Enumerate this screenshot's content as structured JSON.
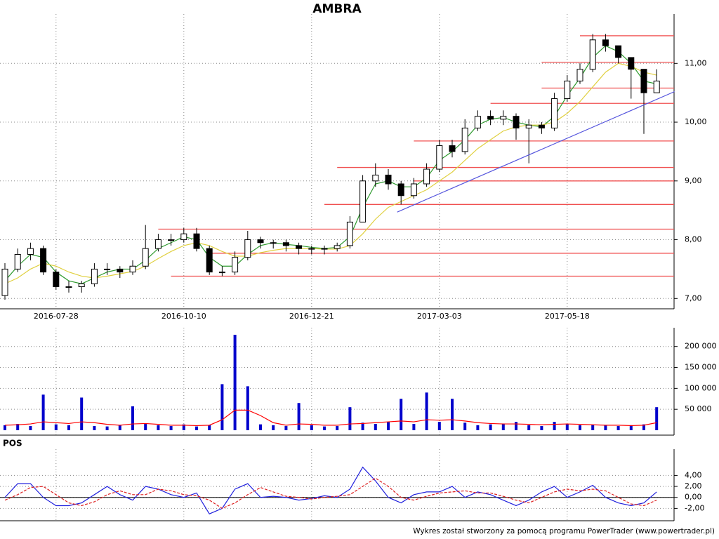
{
  "footer": "Wykres został stworzony za pomocą programu PowerTrader (www.powertrader.pl)",
  "chart_data": [
    {
      "type": "candlestick",
      "title": "AMBRA",
      "categories": [
        null,
        null,
        null,
        null,
        "2016-07-28",
        null,
        null,
        null,
        null,
        null,
        null,
        null,
        null,
        null,
        "2016-10-10",
        null,
        null,
        null,
        null,
        null,
        null,
        null,
        null,
        null,
        "2016-12-21",
        null,
        null,
        null,
        null,
        null,
        null,
        null,
        null,
        null,
        "2017-03-03",
        null,
        null,
        null,
        null,
        null,
        null,
        null,
        null,
        null,
        "2017-05-18",
        null,
        null,
        null,
        null,
        null,
        null,
        null
      ],
      "open": [
        7.05,
        7.5,
        7.75,
        7.85,
        7.45,
        7.2,
        7.2,
        7.25,
        7.5,
        7.5,
        7.45,
        7.55,
        7.85,
        8.0,
        8.0,
        8.1,
        7.85,
        7.45,
        7.45,
        7.7,
        8.0,
        7.95,
        7.95,
        7.9,
        7.85,
        7.85,
        7.85,
        7.9,
        8.3,
        9.0,
        9.1,
        8.95,
        8.75,
        8.95,
        9.2,
        9.6,
        9.5,
        9.9,
        10.1,
        10.05,
        10.1,
        9.9,
        9.95,
        9.9,
        10.4,
        10.7,
        10.9,
        11.4,
        11.3,
        11.1,
        10.9,
        10.5
      ],
      "high": [
        7.6,
        7.85,
        7.95,
        7.9,
        7.5,
        7.3,
        7.3,
        7.6,
        7.6,
        7.55,
        7.65,
        8.25,
        8.1,
        8.1,
        8.2,
        8.2,
        7.9,
        7.55,
        7.8,
        8.15,
        8.05,
        8.0,
        8.0,
        7.95,
        7.9,
        7.9,
        7.95,
        8.4,
        9.1,
        9.3,
        9.2,
        9.0,
        9.05,
        9.3,
        9.7,
        9.7,
        10.05,
        10.2,
        10.2,
        10.2,
        10.15,
        10.05,
        10.0,
        10.5,
        10.8,
        11.0,
        11.5,
        11.5,
        11.3,
        11.1,
        10.9,
        10.9
      ],
      "low": [
        6.98,
        7.45,
        7.65,
        7.4,
        7.15,
        7.1,
        7.1,
        7.2,
        7.4,
        7.35,
        7.4,
        7.5,
        7.8,
        7.9,
        7.95,
        7.8,
        7.4,
        7.38,
        7.4,
        7.65,
        7.85,
        7.85,
        7.8,
        7.75,
        7.75,
        7.75,
        7.8,
        7.85,
        8.3,
        8.9,
        8.85,
        8.6,
        8.7,
        8.9,
        9.15,
        9.4,
        9.45,
        9.85,
        9.95,
        9.95,
        9.7,
        9.3,
        9.8,
        9.85,
        10.35,
        10.65,
        10.85,
        11.2,
        11.0,
        10.4,
        9.8,
        10.5
      ],
      "close": [
        7.5,
        7.75,
        7.85,
        7.45,
        7.2,
        7.2,
        7.25,
        7.5,
        7.5,
        7.45,
        7.55,
        7.85,
        8.0,
        8.0,
        8.1,
        7.85,
        7.45,
        7.45,
        7.7,
        8.0,
        7.95,
        7.95,
        7.9,
        7.85,
        7.85,
        7.85,
        7.9,
        8.3,
        9.0,
        9.1,
        8.95,
        8.75,
        8.95,
        9.2,
        9.6,
        9.5,
        9.9,
        10.1,
        10.05,
        10.1,
        9.9,
        9.95,
        9.9,
        10.4,
        10.7,
        10.9,
        11.4,
        11.3,
        11.1,
        10.9,
        10.5,
        10.7
      ],
      "up_color": "#ffffff",
      "down_color": "#000000",
      "averages": [
        {
          "color": "#2e9a2e",
          "values": [
            7.3,
            7.55,
            7.75,
            7.7,
            7.45,
            7.3,
            7.25,
            7.35,
            7.45,
            7.5,
            7.5,
            7.65,
            7.85,
            7.95,
            8.05,
            8.0,
            7.7,
            7.55,
            7.55,
            7.75,
            7.9,
            7.95,
            7.92,
            7.9,
            7.87,
            7.85,
            7.87,
            8.05,
            8.55,
            8.95,
            9.0,
            8.9,
            8.9,
            9.05,
            9.35,
            9.5,
            9.7,
            9.95,
            10.05,
            10.08,
            10.0,
            9.95,
            9.92,
            10.1,
            10.45,
            10.75,
            11.1,
            11.3,
            11.2,
            11.0,
            10.7,
            10.65
          ]
        },
        {
          "color": "#e0d040",
          "values": [
            7.25,
            7.35,
            7.5,
            7.6,
            7.55,
            7.45,
            7.38,
            7.35,
            7.38,
            7.42,
            7.46,
            7.55,
            7.68,
            7.8,
            7.9,
            7.95,
            7.9,
            7.8,
            7.72,
            7.72,
            7.78,
            7.82,
            7.85,
            7.85,
            7.85,
            7.84,
            7.84,
            7.9,
            8.1,
            8.35,
            8.55,
            8.65,
            8.75,
            8.85,
            9.0,
            9.15,
            9.35,
            9.55,
            9.7,
            9.85,
            9.92,
            9.95,
            9.95,
            10.0,
            10.15,
            10.35,
            10.6,
            10.85,
            11.0,
            10.95,
            10.85,
            10.8
          ]
        }
      ],
      "levels": [
        {
          "value": 7.38,
          "start": 13
        },
        {
          "value": 7.77,
          "start": 16
        },
        {
          "value": 8.18,
          "start": 12
        },
        {
          "value": 8.6,
          "start": 25
        },
        {
          "value": 9.0,
          "start": 32
        },
        {
          "value": 9.23,
          "start": 26
        },
        {
          "value": 9.68,
          "start": 32
        },
        {
          "value": 10.32,
          "start": 38
        },
        {
          "value": 10.58,
          "start": 42
        },
        {
          "value": 11.02,
          "start": 42
        },
        {
          "value": 11.47,
          "start": 45
        }
      ],
      "level_color": "#f05050",
      "trendline": {
        "x": [
          30.7,
          52.4
        ],
        "y": [
          8.47,
          10.52
        ],
        "color": "#5555dd"
      },
      "ylim": [
        6.92,
        11.72
      ],
      "yticks": [
        {
          "value": 7,
          "label": "7,00"
        },
        {
          "value": 8,
          "label": "8,00"
        },
        {
          "value": 9,
          "label": "9,00"
        },
        {
          "value": 10,
          "label": "10,00"
        },
        {
          "value": 11,
          "label": "11,00"
        }
      ],
      "grid": true
    },
    {
      "type": "bar",
      "color": "#0000cc",
      "values": [
        12000,
        15000,
        10000,
        85000,
        14000,
        12000,
        78000,
        10000,
        9000,
        12000,
        57000,
        15000,
        12000,
        10000,
        14000,
        9000,
        12000,
        110000,
        228000,
        105000,
        14000,
        12000,
        10000,
        65000,
        12000,
        9000,
        10000,
        55000,
        18000,
        15000,
        20000,
        75000,
        15000,
        90000,
        20000,
        75000,
        18000,
        12000,
        14000,
        16000,
        20000,
        12000,
        10000,
        20000,
        15000,
        12000,
        13000,
        12000,
        10000,
        12000,
        14000,
        55000
      ],
      "line_color": "#ff0000",
      "line_values": [
        12000,
        13000,
        15000,
        20000,
        18000,
        16000,
        20000,
        18000,
        14000,
        12000,
        15000,
        16000,
        14000,
        12000,
        12000,
        11000,
        12000,
        25000,
        48000,
        48000,
        35000,
        18000,
        12000,
        15000,
        14000,
        12000,
        12000,
        15000,
        16000,
        18000,
        20000,
        22000,
        20000,
        25000,
        24000,
        25000,
        22000,
        18000,
        16000,
        15000,
        15000,
        14000,
        13000,
        14000,
        15000,
        14000,
        13000,
        12000,
        12000,
        11000,
        12000,
        18000
      ],
      "ylim": [
        0,
        228000
      ],
      "yticks": [
        {
          "value": 50000,
          "label": "50 000"
        },
        {
          "value": 100000,
          "label": "100 000"
        },
        {
          "value": 150000,
          "label": "150 000"
        },
        {
          "value": 200000,
          "label": "200 000"
        }
      ],
      "grid": true
    },
    {
      "type": "line",
      "title": "POS",
      "series": [
        {
          "color": "#2020dd",
          "values": [
            0,
            2.5,
            2.5,
            0,
            -1.5,
            -1.5,
            -1,
            0.5,
            2,
            0.5,
            -0.5,
            2,
            1.5,
            0.5,
            0,
            0.8,
            -3,
            -2,
            1.5,
            2.5,
            0,
            0.2,
            0,
            -0.5,
            -0.2,
            0.3,
            0,
            1.5,
            5.5,
            3,
            0,
            -1,
            0.5,
            1,
            1,
            2,
            0,
            1,
            0.5,
            -0.5,
            -1.5,
            -0.5,
            1,
            2,
            0,
            1,
            2.2,
            0,
            -1,
            -1.5,
            -1,
            1
          ]
        },
        {
          "color": "#dd2020",
          "dash": true,
          "values": [
            -0.5,
            0.5,
            1.8,
            2.0,
            0.5,
            -1.0,
            -1.5,
            -0.8,
            0.5,
            1.2,
            0.5,
            0.5,
            1.5,
            1.2,
            0.5,
            0.3,
            -0.5,
            -2.0,
            -1.0,
            0.5,
            1.8,
            1.0,
            0.2,
            0,
            -0.3,
            0,
            0.2,
            0.5,
            2.0,
            3.5,
            2.0,
            0,
            -0.5,
            0.2,
            0.8,
            1.0,
            1.2,
            0.8,
            0.8,
            0.2,
            -0.5,
            -1.0,
            0,
            1.0,
            1.5,
            1.2,
            1.5,
            1.2,
            0,
            -1.2,
            -1.5,
            -0.5
          ]
        }
      ],
      "ylim": [
        -4.25,
        7.5
      ],
      "yticks": [
        {
          "value": -2,
          "label": "-2,00"
        },
        {
          "value": 0,
          "label": "0,00"
        },
        {
          "value": 2,
          "label": "2,00"
        },
        {
          "value": 4,
          "label": "4,00"
        }
      ],
      "grid": true
    }
  ]
}
